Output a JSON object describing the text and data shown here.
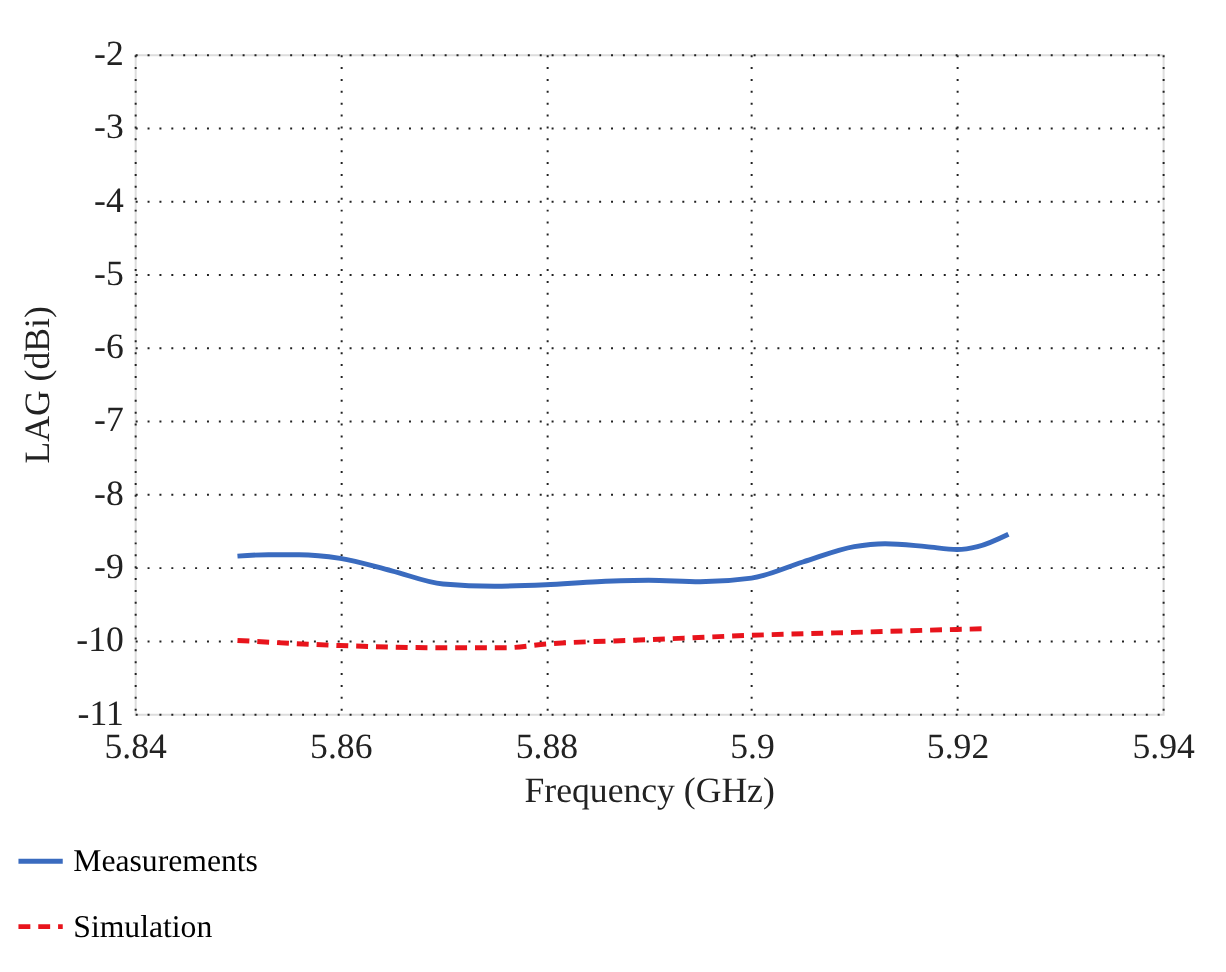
{
  "chart_data": {
    "type": "line",
    "xlabel": "Frequency (GHz)",
    "ylabel": "LAG (dBi)",
    "xlim": [
      5.84,
      5.94
    ],
    "xticks": [
      5.84,
      5.86,
      5.88,
      5.9,
      5.92,
      5.94
    ],
    "ylim": [
      -11,
      -2
    ],
    "yticks": [
      -11,
      -10,
      -9,
      -8,
      -7,
      -6,
      -5,
      -4,
      -3,
      -2
    ],
    "grid": true,
    "legend": "bottom",
    "marker": "none",
    "series": [
      {
        "name": "Measurements",
        "color": "#3a6bbf",
        "line_style": "solid",
        "x": [
          5.85,
          5.853,
          5.856,
          5.86,
          5.865,
          5.87,
          5.875,
          5.88,
          5.885,
          5.89,
          5.895,
          5.9,
          5.905,
          5.91,
          5.913,
          5.917,
          5.92,
          5.922,
          5.925
        ],
        "values": [
          -8.85,
          -8.83,
          -8.83,
          -8.88,
          -9.05,
          -9.23,
          -9.26,
          -9.24,
          -9.2,
          -9.18,
          -9.2,
          -9.15,
          -8.93,
          -8.72,
          -8.68,
          -8.72,
          -8.76,
          -8.72,
          -8.55
        ]
      },
      {
        "name": "Simulation",
        "color": "#e8141c",
        "line_style": "dashed",
        "x": [
          5.85,
          5.86,
          5.87,
          5.876,
          5.88,
          5.89,
          5.9,
          5.91,
          5.92,
          5.923
        ],
        "values": [
          -10.0,
          -10.07,
          -10.1,
          -10.1,
          -10.05,
          -9.99,
          -9.93,
          -9.89,
          -9.85,
          -9.84
        ]
      }
    ]
  }
}
